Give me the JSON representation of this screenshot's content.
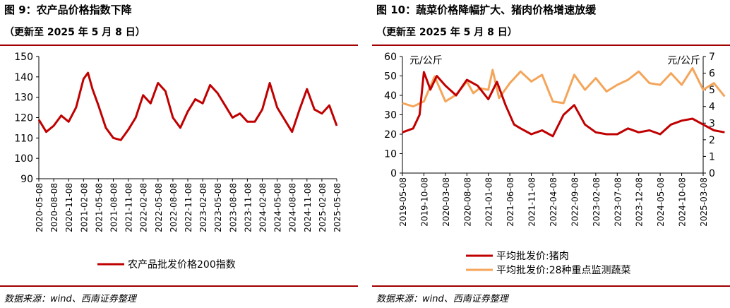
{
  "colors": {
    "accent_rule": "#a10000",
    "pork": "#c00000",
    "veg": "#f4a55a"
  },
  "left": {
    "title": "图 9：农产品价格指数下降",
    "subtitle": "（更新至 2025 年 5 月 8 日）",
    "source": "数据来源：wind、西南证券整理",
    "chart_data": {
      "type": "line",
      "title": "",
      "ylim": [
        90,
        150
      ],
      "yticks": [
        "150",
        "140",
        "130",
        "120",
        "110",
        "100",
        "90"
      ],
      "x_tick_labels": [
        "2020-05-08",
        "2020-08-08",
        "2020-11-08",
        "2021-02-08",
        "2021-05-08",
        "2021-08-08",
        "2021-11-08",
        "2022-02-08",
        "2022-05-08",
        "2022-08-08",
        "2022-11-08",
        "2023-02-08",
        "2023-05-08",
        "2023-08-08",
        "2023-11-08",
        "2024-02-08",
        "2024-05-08",
        "2024-08-08",
        "2024-11-08",
        "2025-02-08",
        "2025-05-08"
      ],
      "grid": false,
      "legend_position": "bottom",
      "series": [
        {
          "name": "农产品批发价格200指数",
          "color": "#c00000",
          "x": [
            0,
            0.5,
            1,
            1.5,
            2,
            2.5,
            3,
            3.3,
            3.6,
            4,
            4.5,
            5,
            5.5,
            6,
            6.5,
            7,
            7.5,
            8,
            8.5,
            9,
            9.5,
            10,
            10.5,
            11,
            11.5,
            12,
            12.5,
            13,
            13.5,
            14,
            14.5,
            15,
            15.5,
            16,
            16.5,
            17,
            17.5,
            18,
            18.5,
            19,
            19.5,
            20
          ],
          "values": [
            119,
            113,
            116,
            121,
            118,
            125,
            139,
            142,
            134,
            126,
            115,
            110,
            109,
            114,
            120,
            131,
            127,
            137,
            133,
            120,
            115,
            123,
            129,
            127,
            136,
            132,
            126,
            120,
            122,
            118,
            118,
            124,
            137,
            125,
            119,
            113,
            124,
            134,
            124,
            122,
            126,
            116
          ]
        }
      ]
    }
  },
  "right": {
    "title": "图 10：蔬菜价格降幅扩大、猪肉价格增速放缓",
    "subtitle": "（更新至 2025 年 5 月 8 日）",
    "source": "数据来源：wind、西南证券整理",
    "chart_data": {
      "type": "line",
      "title": "",
      "left_axis": {
        "label": "元/公斤",
        "ylim": [
          0,
          60
        ],
        "ticks": [
          "60",
          "50",
          "40",
          "30",
          "20",
          "10",
          "0"
        ]
      },
      "right_axis": {
        "label": "元/公斤",
        "ylim": [
          0,
          7
        ],
        "ticks": [
          "7",
          "6",
          "5",
          "4",
          "3",
          "2",
          "1",
          "0"
        ]
      },
      "x_tick_labels": [
        "2019-05-08",
        "2019-10-08",
        "2020-03-08",
        "2020-08-08",
        "2021-01-08",
        "2021-06-08",
        "2021-11-08",
        "2022-04-08",
        "2022-09-08",
        "2023-02-08",
        "2023-07-08",
        "2023-12-08",
        "2024-05-08",
        "2024-10-08",
        "2025-03-08"
      ],
      "grid": false,
      "legend_position": "bottom",
      "series": [
        {
          "name": "平均批发价:猪肉",
          "axis": "left",
          "color": "#c00000",
          "x": [
            0,
            0.5,
            0.8,
            1,
            1.3,
            1.6,
            2,
            2.5,
            3,
            3.5,
            4,
            4.4,
            4.8,
            5.2,
            5.5,
            6,
            6.5,
            7,
            7.5,
            8,
            8.5,
            9,
            9.5,
            10,
            10.5,
            11,
            11.5,
            12,
            12.5,
            13,
            13.5,
            14,
            14.5,
            15
          ],
          "values": [
            21,
            23,
            30,
            52,
            43,
            50,
            45,
            40,
            48,
            45,
            38,
            47,
            35,
            25,
            23,
            20,
            22,
            19,
            30,
            35,
            25,
            21,
            20,
            20,
            23,
            21,
            22,
            20,
            25,
            27,
            28,
            25,
            22,
            21
          ]
        },
        {
          "name": "平均批发价:28种重点监测蔬菜",
          "axis": "right",
          "color": "#f4a55a",
          "x": [
            0,
            0.5,
            1,
            1.5,
            2,
            2.5,
            3,
            3.3,
            3.6,
            4,
            4.2,
            4.5,
            5,
            5.5,
            6,
            6.5,
            7,
            7.5,
            8,
            8.5,
            9,
            9.5,
            10,
            10.5,
            11,
            11.5,
            12,
            12.5,
            13,
            13.5,
            14,
            14.5,
            15
          ],
          "values": [
            4.2,
            4.0,
            4.3,
            5.8,
            4.3,
            4.7,
            5.5,
            4.8,
            5.1,
            5.0,
            6.2,
            4.5,
            5.4,
            6.1,
            5.5,
            5.9,
            4.3,
            4.2,
            5.9,
            5.0,
            5.7,
            4.9,
            5.3,
            5.6,
            6.1,
            5.4,
            5.3,
            6.0,
            5.3,
            6.3,
            5.0,
            5.4,
            4.6
          ]
        }
      ]
    }
  }
}
